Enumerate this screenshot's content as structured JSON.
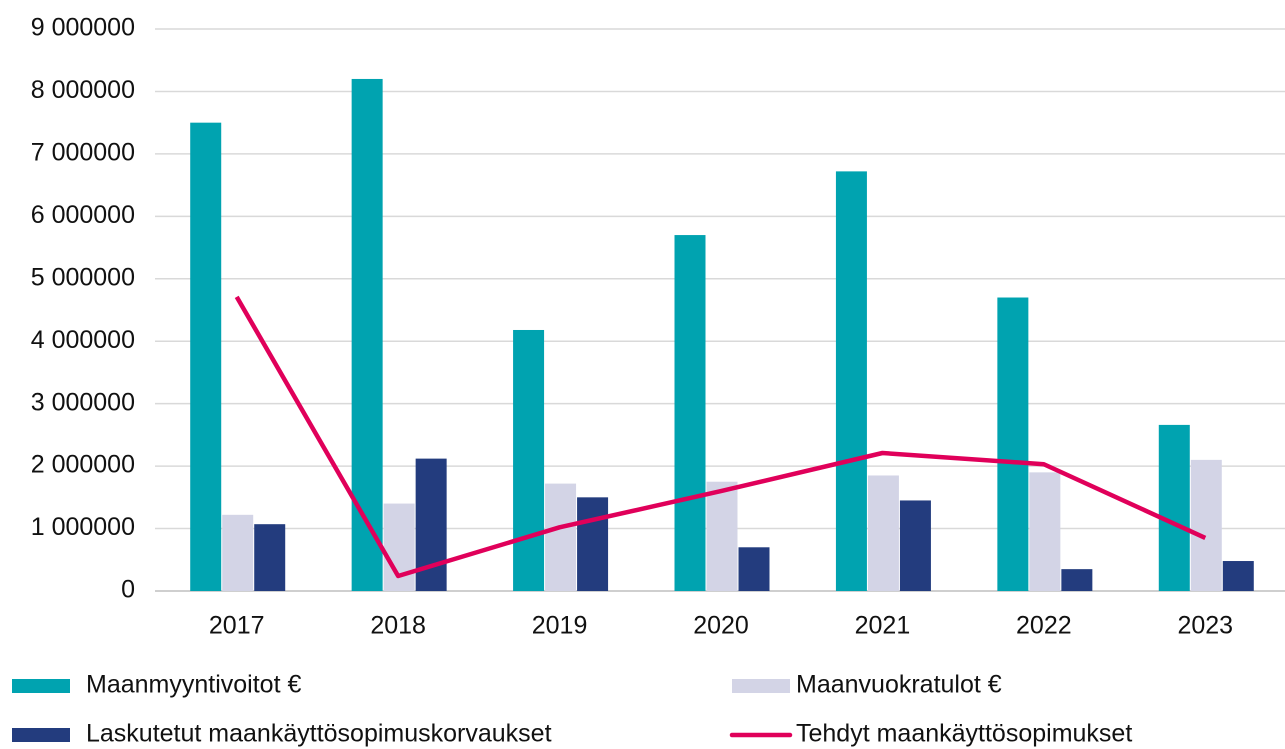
{
  "chart_data": {
    "type": "bar",
    "categories": [
      "2017",
      "2018",
      "2019",
      "2020",
      "2021",
      "2022",
      "2023"
    ],
    "series": [
      {
        "name": "Maanmyyntivoitot €",
        "color": "#00a3b0",
        "values": [
          7500000,
          8200000,
          4180000,
          5700000,
          6720000,
          4700000,
          2660000
        ]
      },
      {
        "name": "Maanvuokratulot €",
        "color": "#d3d4e6",
        "values": [
          1220000,
          1400000,
          1720000,
          1750000,
          1850000,
          1900000,
          2100000
        ]
      },
      {
        "name": "Laskutetut maankäyttösopimuskorvaukset",
        "color": "#233c7e",
        "values": [
          1070000,
          2120000,
          1500000,
          700000,
          1450000,
          350000,
          480000
        ]
      },
      {
        "name": "Tehdyt maankäyttösopimukset",
        "color": "#e0005a",
        "type": "line",
        "values": [
          4710000,
          240000,
          1020000,
          1600000,
          2210000,
          2030000,
          850000
        ]
      }
    ],
    "ylim": [
      0,
      9000000
    ],
    "yticks": [
      0,
      {
        "value": 1000000,
        "label": "1 000000"
      },
      {
        "value": 2000000,
        "label": "2 000000"
      },
      {
        "value": 3000000,
        "label": "3 000000"
      },
      {
        "value": 4000000,
        "label": "4 000000"
      },
      {
        "value": 5000000,
        "label": "5 000000"
      },
      {
        "value": 6000000,
        "label": "6 000000"
      },
      {
        "value": 7000000,
        "label": "7 000000"
      },
      {
        "value": 8000000,
        "label": "8 000000"
      },
      {
        "value": 9000000,
        "label": "9 000000"
      }
    ],
    "grid": true
  }
}
